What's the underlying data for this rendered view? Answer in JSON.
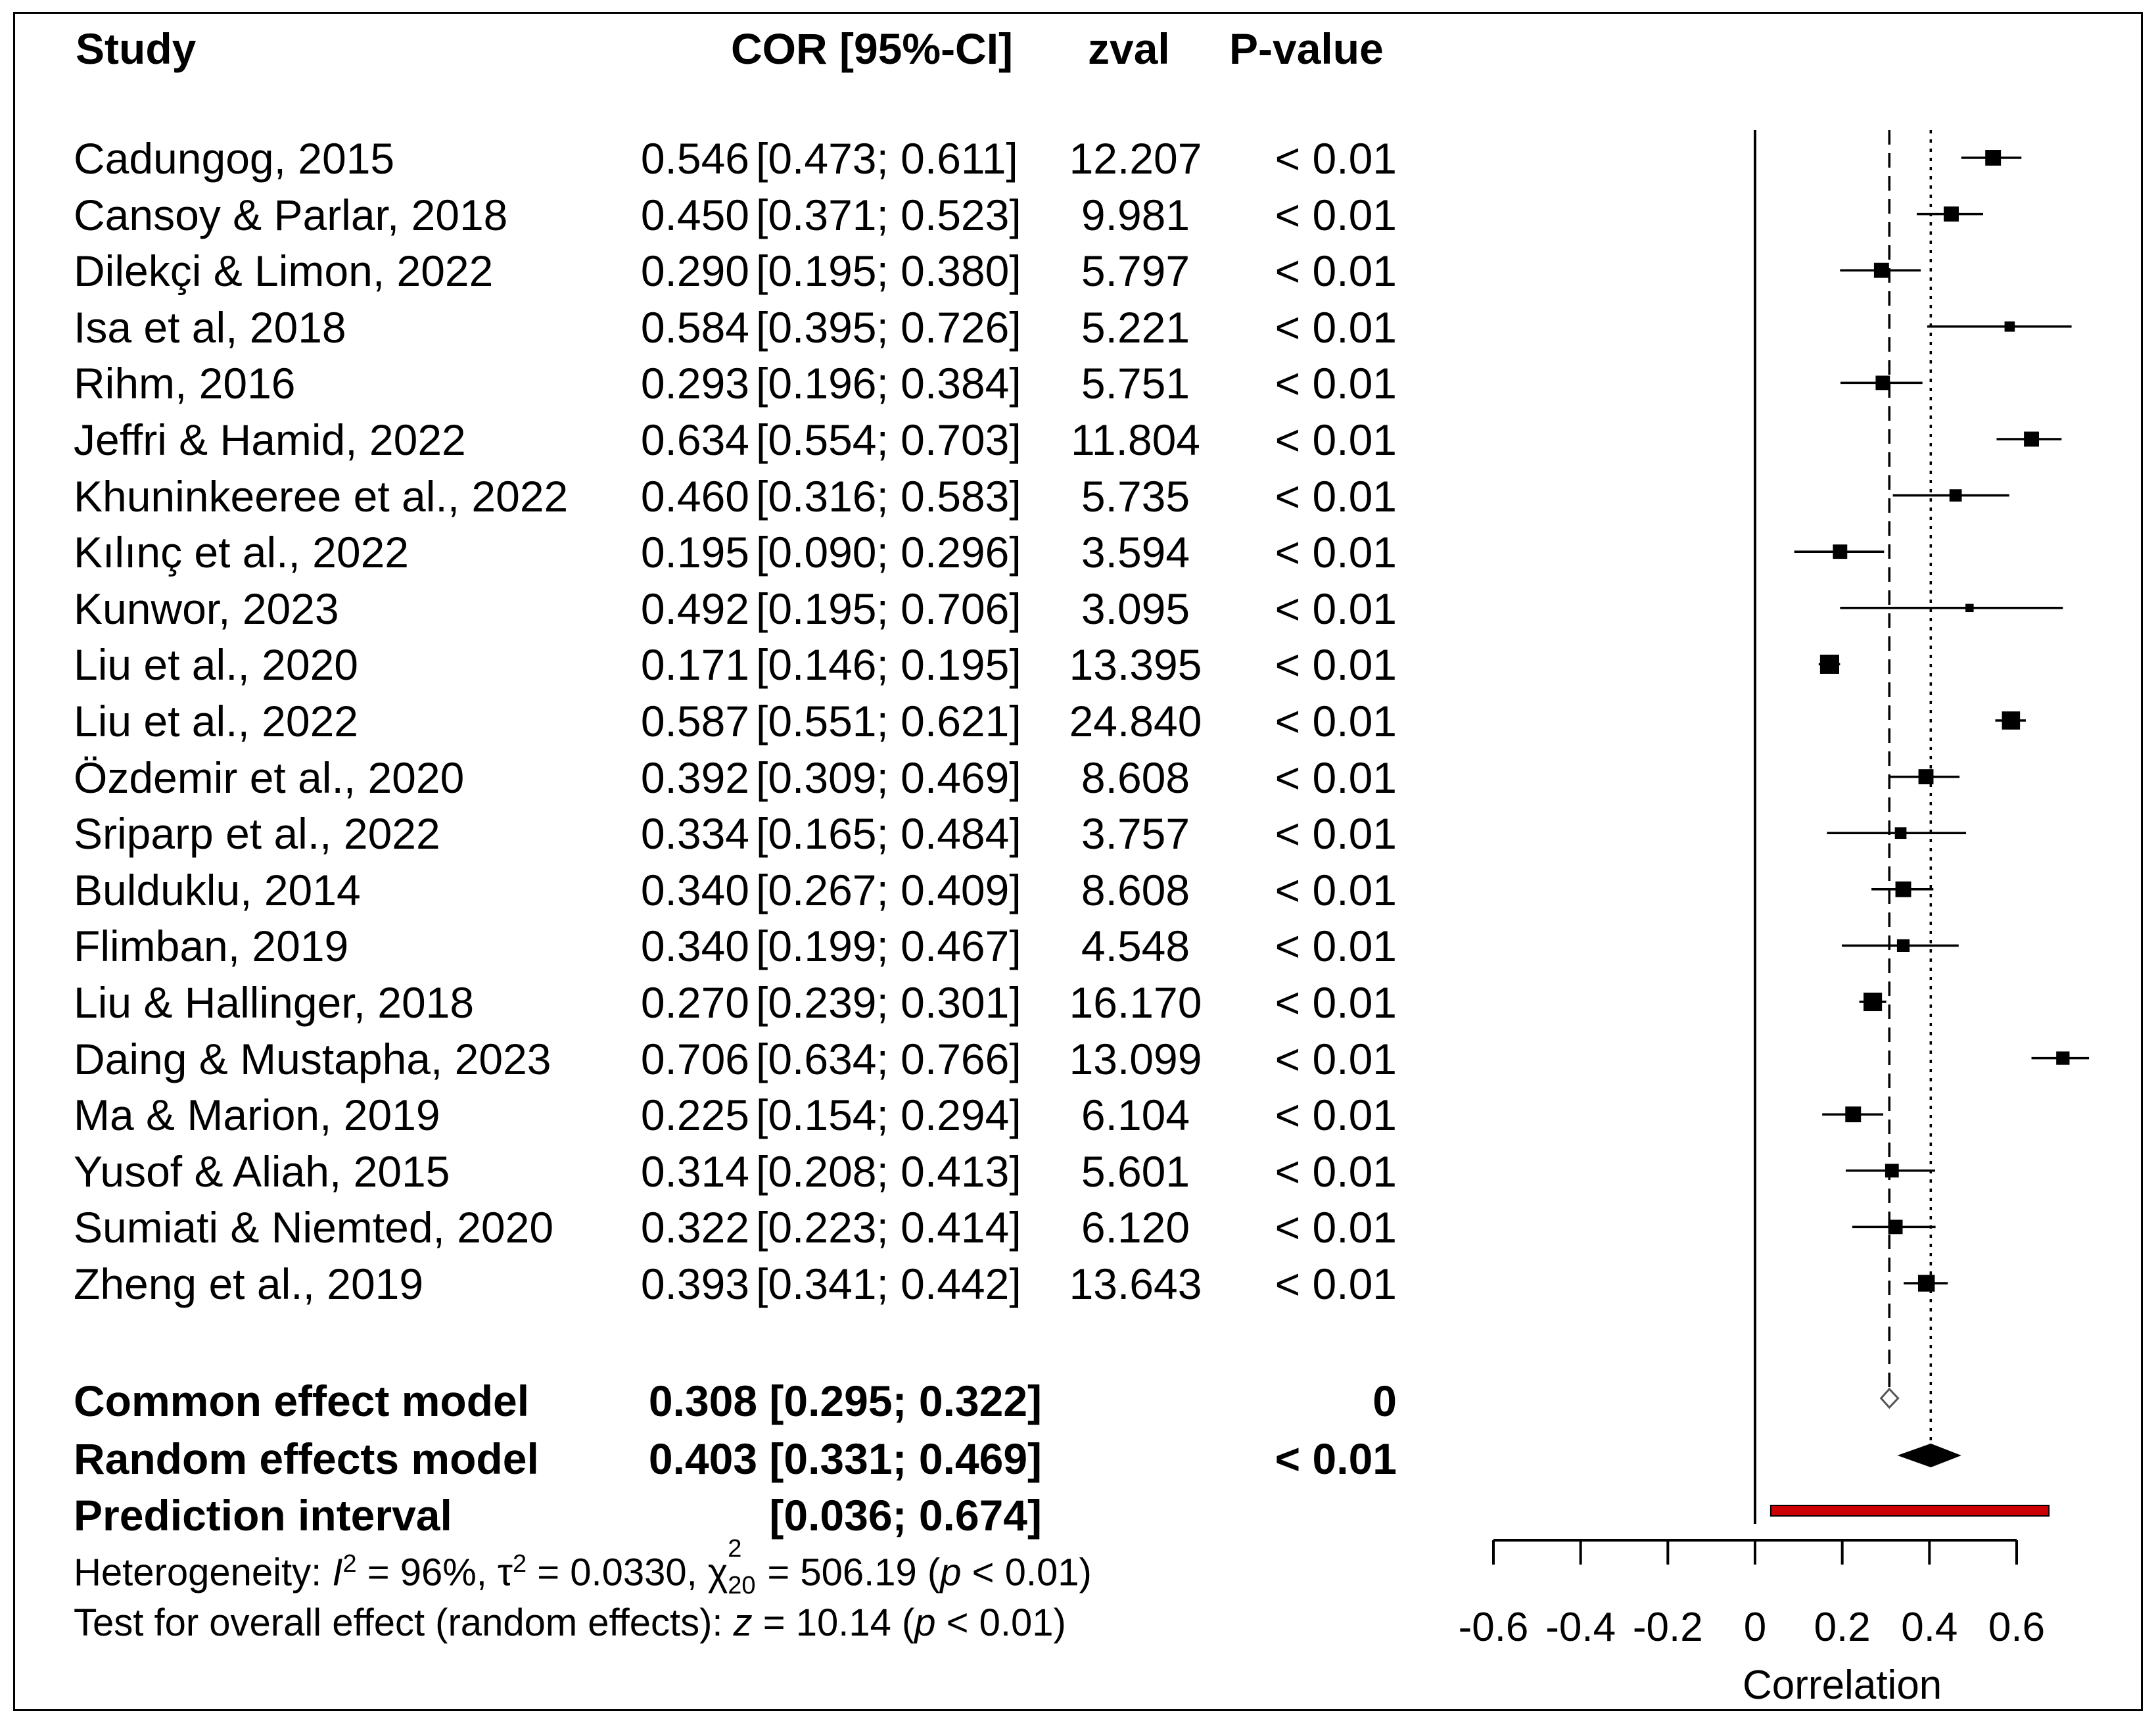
{
  "chart_data": {
    "type": "forest",
    "columns": {
      "study": "Study",
      "cor": "COR [95%-CI]",
      "zval": "zval",
      "pvalue": "P-value"
    },
    "studies": [
      {
        "name": "Cadungog, 2015",
        "cor": "0.546",
        "ci": "[0.473; 0.611]",
        "zval": "12.207",
        "p": "< 0.01",
        "est": 0.546,
        "lo": 0.473,
        "hi": 0.611,
        "weight": 4.6
      },
      {
        "name": "Cansoy & Parlar, 2018",
        "cor": "0.450",
        "ci": "[0.371; 0.523]",
        "zval": "9.981",
        "p": "< 0.01",
        "est": 0.45,
        "lo": 0.371,
        "hi": 0.523,
        "weight": 4.4
      },
      {
        "name": "Dilekçi & Limon, 2022",
        "cor": "0.290",
        "ci": "[0.195; 0.380]",
        "zval": "5.797",
        "p": "< 0.01",
        "est": 0.29,
        "lo": 0.195,
        "hi": 0.38,
        "weight": 4.4
      },
      {
        "name": "Isa et al, 2018",
        "cor": "0.584",
        "ci": "[0.395; 0.726]",
        "zval": "5.221",
        "p": "< 0.01",
        "est": 0.584,
        "lo": 0.395,
        "hi": 0.726,
        "weight": 3.0
      },
      {
        "name": "Rihm, 2016",
        "cor": "0.293",
        "ci": "[0.196; 0.384]",
        "zval": "5.751",
        "p": "< 0.01",
        "est": 0.293,
        "lo": 0.196,
        "hi": 0.384,
        "weight": 4.2
      },
      {
        "name": "Jeffri & Hamid, 2022",
        "cor": "0.634",
        "ci": "[0.554; 0.703]",
        "zval": "11.804",
        "p": "< 0.01",
        "est": 0.634,
        "lo": 0.554,
        "hi": 0.703,
        "weight": 4.4
      },
      {
        "name": "Khuninkeeree et al., 2022",
        "cor": "0.460",
        "ci": "[0.316; 0.583]",
        "zval": "5.735",
        "p": "< 0.01",
        "est": 0.46,
        "lo": 0.316,
        "hi": 0.583,
        "weight": 3.6
      },
      {
        "name": "Kılınç et al., 2022",
        "cor": "0.195",
        "ci": "[0.090; 0.296]",
        "zval": "3.594",
        "p": "< 0.01",
        "est": 0.195,
        "lo": 0.09,
        "hi": 0.296,
        "weight": 4.2
      },
      {
        "name": "Kunwor, 2023",
        "cor": "0.492",
        "ci": "[0.195; 0.706]",
        "zval": "3.095",
        "p": "< 0.01",
        "est": 0.492,
        "lo": 0.195,
        "hi": 0.706,
        "weight": 2.4
      },
      {
        "name": "Liu et al., 2020",
        "cor": "0.171",
        "ci": "[0.146; 0.195]",
        "zval": "13.395",
        "p": "< 0.01",
        "est": 0.171,
        "lo": 0.146,
        "hi": 0.195,
        "weight": 5.6
      },
      {
        "name": "Liu et al., 2022",
        "cor": "0.587",
        "ci": "[0.551; 0.621]",
        "zval": "24.840",
        "p": "< 0.01",
        "est": 0.587,
        "lo": 0.551,
        "hi": 0.621,
        "weight": 5.3
      },
      {
        "name": "Özdemir et al., 2020",
        "cor": "0.392",
        "ci": "[0.309; 0.469]",
        "zval": "8.608",
        "p": "< 0.01",
        "est": 0.392,
        "lo": 0.309,
        "hi": 0.469,
        "weight": 4.4
      },
      {
        "name": "Sriparp et al., 2022",
        "cor": "0.334",
        "ci": "[0.165; 0.484]",
        "zval": "3.757",
        "p": "< 0.01",
        "est": 0.334,
        "lo": 0.165,
        "hi": 0.484,
        "weight": 3.4
      },
      {
        "name": "Bulduklu, 2014",
        "cor": "0.340",
        "ci": "[0.267; 0.409]",
        "zval": "8.608",
        "p": "< 0.01",
        "est": 0.34,
        "lo": 0.267,
        "hi": 0.409,
        "weight": 4.6
      },
      {
        "name": "Flimban, 2019",
        "cor": "0.340",
        "ci": "[0.199; 0.467]",
        "zval": "4.548",
        "p": "< 0.01",
        "est": 0.34,
        "lo": 0.199,
        "hi": 0.467,
        "weight": 3.7
      },
      {
        "name": "Liu & Hallinger, 2018",
        "cor": "0.270",
        "ci": "[0.239; 0.301]",
        "zval": "16.170",
        "p": "< 0.01",
        "est": 0.27,
        "lo": 0.239,
        "hi": 0.301,
        "weight": 5.4
      },
      {
        "name": "Daing & Mustapha, 2023",
        "cor": "0.706",
        "ci": "[0.634; 0.766]",
        "zval": "13.099",
        "p": "< 0.01",
        "est": 0.706,
        "lo": 0.634,
        "hi": 0.766,
        "weight": 3.9
      },
      {
        "name": "Ma & Marion, 2019",
        "cor": "0.225",
        "ci": "[0.154; 0.294]",
        "zval": "6.104",
        "p": "< 0.01",
        "est": 0.225,
        "lo": 0.154,
        "hi": 0.294,
        "weight": 4.6
      },
      {
        "name": "Yusof & Aliah, 2015",
        "cor": "0.314",
        "ci": "[0.208; 0.413]",
        "zval": "5.601",
        "p": "< 0.01",
        "est": 0.314,
        "lo": 0.208,
        "hi": 0.413,
        "weight": 4.0
      },
      {
        "name": "Sumiati & Niemted, 2020",
        "cor": "0.322",
        "ci": "[0.223; 0.414]",
        "zval": "6.120",
        "p": "< 0.01",
        "est": 0.322,
        "lo": 0.223,
        "hi": 0.414,
        "weight": 4.2
      },
      {
        "name": "Zheng et al., 2019",
        "cor": "0.393",
        "ci": "[0.341; 0.442]",
        "zval": "13.643",
        "p": "< 0.01",
        "est": 0.393,
        "lo": 0.341,
        "hi": 0.442,
        "weight": 4.9
      }
    ],
    "common_effect": {
      "label": "Common effect model",
      "value": "0.308 [0.295; 0.322]",
      "p": "0",
      "est": 0.308,
      "lo": 0.295,
      "hi": 0.322
    },
    "random_effects": {
      "label": "Random effects model",
      "value": "0.403 [0.331; 0.469]",
      "p": "< 0.01",
      "est": 0.403,
      "lo": 0.331,
      "hi": 0.469
    },
    "prediction_interval": {
      "label": "Prediction interval",
      "value": "[0.036; 0.674]",
      "lo": 0.036,
      "hi": 0.674
    },
    "heterogeneity": {
      "prefix": "Heterogeneity: ",
      "i2_sym": "I",
      "i2_sup": "2",
      "i2_val": " = 96%, ",
      "tau_sym": "τ",
      "tau_sup": "2",
      "tau_val": " = 0.0330, ",
      "chi_sym": "χ",
      "chi_sup": "2",
      "chi_sub": "20",
      "chi_val": " = 506.19 (",
      "p_sym": "p",
      "p_val": " < 0.01)"
    },
    "overall_effect": {
      "prefix": "Test for overall effect (random effects): ",
      "z_sym": "z",
      "z_val": " = 10.14 (",
      "p_sym": "p",
      "p_val": " < 0.01)"
    },
    "xaxis": {
      "label": "Correlation",
      "ticks": [
        -0.6,
        -0.4,
        -0.2,
        0,
        0.2,
        0.4,
        0.6
      ],
      "tick_labels": [
        "-0.6",
        "-0.4",
        "-0.2",
        "0",
        "0.2",
        "0.4",
        "0.6"
      ],
      "xlim": [
        -0.6,
        0.6
      ]
    },
    "reference_line": 0,
    "colors": {
      "prediction": "#cc0000",
      "square": "#000000",
      "background": "#ffffff"
    }
  }
}
